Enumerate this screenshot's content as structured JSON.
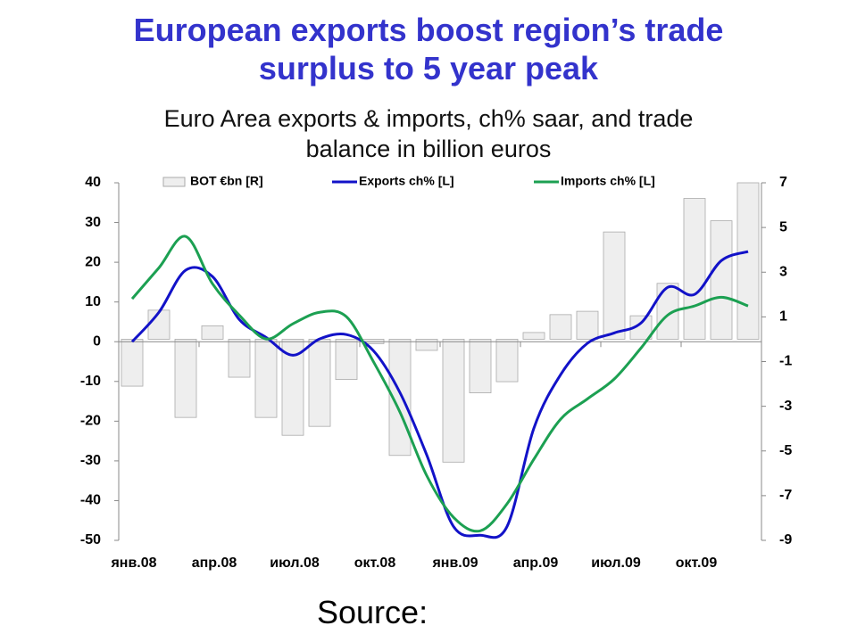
{
  "chart_data": {
    "type": "bar-line",
    "title": "European exports boost region’s trade surplus to 5 year peak",
    "subtitle": "Euro Area exports & imports, ch% saar, and trade balance in billion euros",
    "source": "Source:",
    "categories": [
      "янв.08",
      null,
      null,
      "апр.08",
      null,
      null,
      "июл.08",
      null,
      null,
      "окт.08",
      null,
      null,
      "янв.09",
      null,
      null,
      "апр.09",
      null,
      null,
      "июл.09",
      null,
      null,
      "окт.09",
      null,
      null
    ],
    "series": [
      {
        "name": "BOT €bn [R]",
        "kind": "bar",
        "axis": "y2",
        "color": "#eeeeee",
        "values": [
          -2.1,
          1.3,
          -3.5,
          0.6,
          -1.7,
          -3.5,
          -4.3,
          -3.9,
          -1.8,
          -0.2,
          -5.2,
          -0.5,
          -5.5,
          -2.4,
          -1.9,
          0.3,
          1.1,
          1.25,
          4.8,
          1.05,
          2.5,
          6.3,
          5.3,
          7.0
        ]
      },
      {
        "name": "Exports ch% [L]",
        "kind": "line",
        "color": "#1212c8",
        "values": [
          0,
          7.4,
          18,
          16.4,
          5.6,
          1.1,
          -3.4,
          0.7,
          1.8,
          -2.2,
          -12.8,
          -28.5,
          -46.5,
          -48.7,
          -46.5,
          -21.8,
          -8.3,
          -0.4,
          2.2,
          4.7,
          13.7,
          11.9,
          20.4,
          22.7
        ]
      },
      {
        "name": "Imports ch% [L]",
        "kind": "line",
        "color": "#1ca052",
        "values": [
          10.8,
          18.6,
          26.5,
          14.6,
          6.7,
          0.7,
          4.5,
          7.4,
          6.3,
          -4.9,
          -17.7,
          -33.7,
          -44.2,
          -47.6,
          -40.8,
          -29.6,
          -19.5,
          -14.4,
          -9.4,
          -1.6,
          6.7,
          9,
          11.2,
          9
        ]
      }
    ],
    "ylim": [
      -50,
      40
    ],
    "yticks": [
      -50,
      -40,
      -30,
      -20,
      -10,
      0,
      10,
      20,
      30,
      40
    ],
    "y2lim": [
      -9,
      7
    ],
    "y2ticks": [
      -9,
      -7,
      -5,
      -3,
      -1,
      1,
      3,
      5,
      7
    ],
    "legend": "top"
  }
}
